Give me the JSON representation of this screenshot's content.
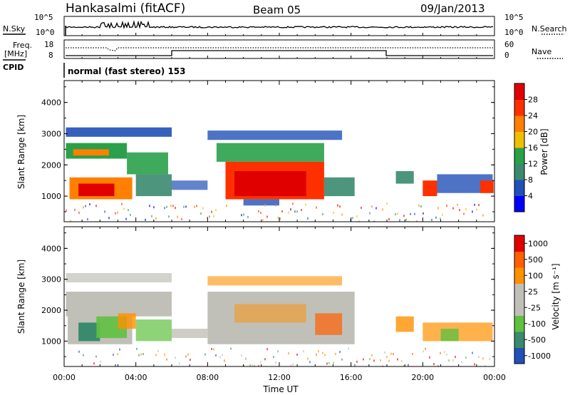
{
  "header": {
    "station": "Hankasalmi (fitACF)",
    "beam": "Beam 05",
    "date": "09/Jan/2013"
  },
  "labels": {
    "nsky": "N.Sky",
    "nsearch": "N.Search",
    "freq": "Freq.",
    "freq_unit": "[MHz]",
    "nave": "Nave",
    "cpid": "CPID",
    "cpid_value": "normal (fast stereo) 153",
    "slant_range": "Slant Range [km]",
    "time_ut": "Time UT"
  },
  "noise_panel": {
    "left_ticks": [
      "10^5",
      "10^0"
    ],
    "right_ticks": [
      "10^5",
      "10^0"
    ]
  },
  "freq_panel": {
    "left_ticks": [
      "18",
      "8"
    ],
    "right_ticks": [
      "60",
      "0"
    ]
  },
  "colors": {
    "power_scale": [
      "#0000ff",
      "#2050b8",
      "#3a8a6e",
      "#2aa04a",
      "#f0c000",
      "#ff8000",
      "#ff3000",
      "#e00000"
    ],
    "velocity_scale": [
      "#2050b8",
      "#3a8a6e",
      "#60c040",
      "#c0c0b8",
      "#c0c0b8",
      "#ff9000",
      "#ff6000",
      "#e00000"
    ],
    "ground_scatter": "#c0c0b8"
  },
  "chart_data": [
    {
      "type": "heatmap",
      "title": "Power",
      "ylabel": "Slant Range [km]",
      "xlabel": "Time UT",
      "x_ticks": [
        "00:00",
        "04:00",
        "08:00",
        "12:00",
        "16:00",
        "20:00",
        "00:00"
      ],
      "y_ticks": [
        1000,
        2000,
        3000,
        4000
      ],
      "ylim": [
        180,
        4700
      ],
      "colorbar": {
        "label": "Power [dB]",
        "ticks": [
          4,
          8,
          12,
          16,
          20,
          24,
          28
        ]
      }
    },
    {
      "type": "heatmap",
      "title": "Velocity",
      "ylabel": "Slant Range [km]",
      "xlabel": "Time UT",
      "x_ticks": [
        "00:00",
        "04:00",
        "08:00",
        "12:00",
        "16:00",
        "20:00",
        "00:00"
      ],
      "y_ticks": [
        1000,
        2000,
        3000,
        4000
      ],
      "ylim": [
        180,
        4700
      ],
      "colorbar": {
        "label": "Velocity [m s⁻¹]",
        "ticks": [
          "1000",
          "500",
          "100",
          "25",
          "-25",
          "-100",
          "-500",
          "-1000"
        ]
      }
    }
  ]
}
